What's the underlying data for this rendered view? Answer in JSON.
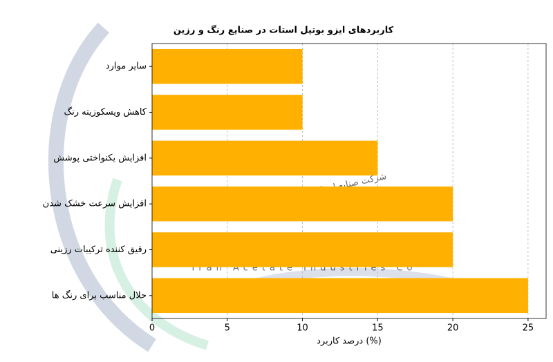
{
  "chart_data": {
    "type": "barh",
    "title": "کاربردهای ایزو بوتیل استات در صنایع رنگ و رزین",
    "xlabel": "درصد کاربرد (%)",
    "categories": [
      "سایر موارد",
      "کاهش ویسکوزیته رنگ",
      "افزایش یکنواختی پوشش",
      "افزایش سرعت خشک شدن",
      "رقیق کننده ترکیبات رزینی",
      "حلال مناسب برای رنگ ها"
    ],
    "values": [
      10,
      10,
      15,
      20,
      20,
      25
    ],
    "color": "#ffb000",
    "xlim": [
      0,
      26.2
    ],
    "xticks": [
      0,
      5,
      10,
      15,
      20,
      25
    ],
    "grid": true,
    "watermark": [
      "شرکت صنایع استات ایران",
      "Iran Acetate Industries Co"
    ]
  }
}
